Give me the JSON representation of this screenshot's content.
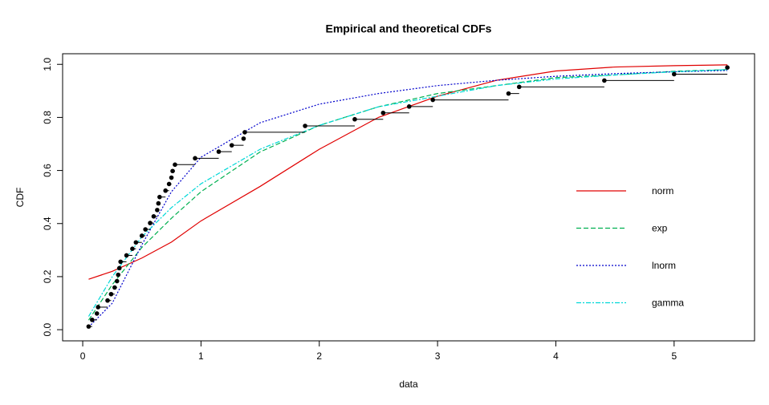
{
  "chart_data": {
    "type": "ecdf",
    "title": "Empirical and theoretical CDFs",
    "x_label": "data",
    "y_label": "CDF",
    "xlim": [
      -0.17,
      5.68
    ],
    "ylim": [
      -0.042,
      1.04
    ],
    "xticks": [
      0,
      1,
      2,
      3,
      4,
      5
    ],
    "yticks": [
      {
        "value": 0,
        "label": "0.0"
      },
      0.2,
      0.4,
      0.6,
      0.8,
      {
        "value": 1,
        "label": "1.0"
      }
    ],
    "legend": "right",
    "empirical": {
      "color": "#000000",
      "x": [
        0.05,
        0.08,
        0.12,
        0.13,
        0.21,
        0.24,
        0.27,
        0.29,
        0.3,
        0.31,
        0.32,
        0.37,
        0.42,
        0.45,
        0.5,
        0.53,
        0.57,
        0.6,
        0.63,
        0.64,
        0.65,
        0.7,
        0.73,
        0.75,
        0.76,
        0.78,
        0.95,
        1.15,
        1.26,
        1.36,
        1.37,
        1.88,
        2.3,
        2.54,
        2.76,
        2.96,
        3.6,
        3.69,
        4.41,
        5.0,
        5.45
      ],
      "y": [
        0.012,
        0.037,
        0.061,
        0.085,
        0.11,
        0.134,
        0.159,
        0.183,
        0.207,
        0.232,
        0.256,
        0.28,
        0.305,
        0.329,
        0.354,
        0.378,
        0.402,
        0.427,
        0.451,
        0.476,
        0.5,
        0.524,
        0.549,
        0.573,
        0.598,
        0.622,
        0.646,
        0.671,
        0.695,
        0.72,
        0.744,
        0.768,
        0.793,
        0.817,
        0.841,
        0.866,
        0.89,
        0.915,
        0.939,
        0.963,
        0.988
      ]
    },
    "x": [
      0.05,
      0.25,
      0.5,
      0.75,
      1,
      1.5,
      2,
      2.5,
      3,
      3.5,
      4,
      4.5,
      5,
      5.45
    ],
    "series": [
      {
        "name": "norm",
        "color": "#e00000",
        "linestyle": "solid",
        "values": [
          0.19,
          0.22,
          0.27,
          0.33,
          0.41,
          0.54,
          0.68,
          0.8,
          0.88,
          0.94,
          0.975,
          0.99,
          0.995,
          0.998
        ]
      },
      {
        "name": "exp",
        "color": "#00b050",
        "linestyle": "dashed",
        "values": [
          0.036,
          0.17,
          0.31,
          0.42,
          0.52,
          0.67,
          0.77,
          0.84,
          0.89,
          0.92,
          0.95,
          0.96,
          0.974,
          0.98
        ]
      },
      {
        "name": "lnorm",
        "color": "#0000cc",
        "linestyle": "dotted",
        "values": [
          0.01,
          0.1,
          0.32,
          0.52,
          0.65,
          0.78,
          0.85,
          0.89,
          0.92,
          0.94,
          0.955,
          0.965,
          0.972,
          0.977
        ]
      },
      {
        "name": "gamma",
        "color": "#00d8d8",
        "linestyle": "dotdash",
        "values": [
          0.05,
          0.2,
          0.35,
          0.46,
          0.55,
          0.68,
          0.77,
          0.84,
          0.88,
          0.92,
          0.945,
          0.96,
          0.972,
          0.98
        ]
      }
    ]
  }
}
